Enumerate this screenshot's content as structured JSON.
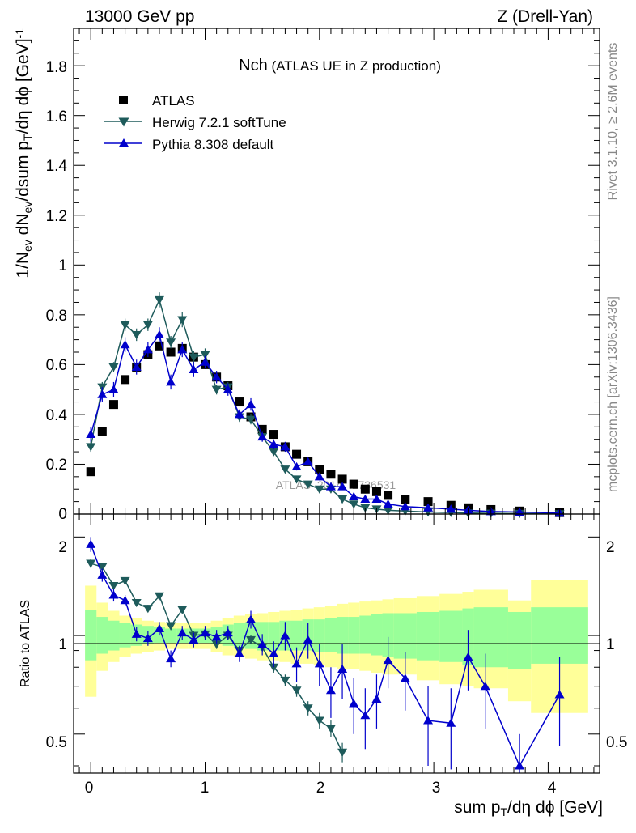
{
  "header": {
    "left": "13000 GeV pp",
    "right": "Z (Drell-Yan)"
  },
  "side_text": {
    "rivet": "Rivet 3.1.10, ≥ 2.6M events",
    "mcplots": "mcplots.cern.ch [arXiv:1306.3436]"
  },
  "watermark": "ATLAS_2014_I1736531",
  "plot_title": {
    "main": "Nch",
    "sub": "(ATLAS UE in Z production)"
  },
  "x_axis": {
    "label_parts": [
      "sum p",
      "T",
      "/dη dϕ [GeV]"
    ],
    "ticks": [
      "0",
      "1",
      "2",
      "3",
      "4"
    ]
  },
  "y_axis_main": {
    "label_parts": [
      "1/N",
      "ev",
      " dN",
      "ev",
      "/dsum p",
      "T",
      "/dη dϕ  [GeV]",
      "-1"
    ],
    "ticks": [
      "0",
      "0.2",
      "0.4",
      "0.6",
      "0.8",
      "1",
      "1.2",
      "1.4",
      "1.6",
      "1.8"
    ]
  },
  "y_axis_ratio": {
    "label": "Ratio to ATLAS",
    "ticks": [
      "0.5",
      "1",
      "2"
    ]
  },
  "colors": {
    "atlas": "#000000",
    "herwig": "#1e5b5b",
    "pythia": "#0000cc",
    "band_inner": "#99ff99",
    "band_outer": "#ffff99"
  },
  "chart_data": [
    {
      "type": "scatter",
      "panel": "main",
      "xlim": [
        -0.15,
        4.45
      ],
      "ylim": [
        0,
        1.95
      ],
      "series": [
        {
          "name": "ATLAS",
          "marker": "square",
          "x": [
            0,
            0.1,
            0.2,
            0.3,
            0.4,
            0.5,
            0.6,
            0.7,
            0.8,
            0.9,
            1.0,
            1.1,
            1.2,
            1.3,
            1.4,
            1.5,
            1.6,
            1.7,
            1.8,
            1.9,
            2.0,
            2.1,
            2.2,
            2.3,
            2.4,
            2.5,
            2.6,
            2.75,
            2.95,
            3.15,
            3.3,
            3.5,
            3.75,
            4.1
          ],
          "y": [
            0.17,
            0.33,
            0.44,
            0.54,
            0.59,
            0.64,
            0.675,
            0.65,
            0.665,
            0.63,
            0.6,
            0.55,
            0.515,
            0.45,
            0.39,
            0.34,
            0.32,
            0.27,
            0.24,
            0.21,
            0.18,
            0.16,
            0.14,
            0.12,
            0.1,
            0.09,
            0.075,
            0.06,
            0.05,
            0.035,
            0.025,
            0.018,
            0.012,
            0.006
          ],
          "err": []
        },
        {
          "name": "Herwig 7.2.1 softTune",
          "marker": "triangle-down",
          "x": [
            0,
            0.1,
            0.2,
            0.3,
            0.4,
            0.5,
            0.6,
            0.7,
            0.8,
            0.9,
            1.0,
            1.1,
            1.2,
            1.3,
            1.4,
            1.5,
            1.6,
            1.7,
            1.8,
            1.9,
            2.0,
            2.1,
            2.2,
            2.3,
            2.4,
            2.5,
            2.6,
            2.75,
            2.95,
            3.15,
            3.3,
            3.5,
            3.75,
            4.1
          ],
          "y": [
            0.27,
            0.51,
            0.59,
            0.76,
            0.72,
            0.76,
            0.86,
            0.69,
            0.78,
            0.63,
            0.64,
            0.5,
            0.51,
            0.39,
            0.38,
            0.31,
            0.25,
            0.18,
            0.14,
            0.12,
            0.1,
            0.1,
            0.06,
            0.04,
            0.025,
            0.02,
            0.015,
            0.012,
            0.008,
            0.006,
            0.004,
            0.003,
            0.002,
            0.001
          ],
          "err": [
            0.02,
            0.02,
            0.02,
            0.025,
            0.025,
            0.025,
            0.03,
            0.025,
            0.03,
            0.025,
            0.025,
            0.02,
            0.02,
            0.02,
            0.02,
            0.015,
            0.012,
            0.01,
            0.01,
            0.008,
            0.007,
            0.006,
            0.005,
            0.004,
            0.003,
            0.003,
            0.002,
            0.002,
            0.002,
            0.001,
            0.001,
            0.001,
            0.001,
            0.001
          ]
        },
        {
          "name": "Pythia 8.308 default",
          "marker": "triangle-up",
          "x": [
            0,
            0.1,
            0.2,
            0.3,
            0.4,
            0.5,
            0.6,
            0.7,
            0.8,
            0.9,
            1.0,
            1.1,
            1.2,
            1.3,
            1.4,
            1.5,
            1.6,
            1.7,
            1.8,
            1.9,
            2.0,
            2.1,
            2.2,
            2.3,
            2.4,
            2.5,
            2.6,
            2.75,
            2.95,
            3.15,
            3.3,
            3.5,
            3.75,
            4.1
          ],
          "y": [
            0.32,
            0.48,
            0.5,
            0.68,
            0.59,
            0.66,
            0.72,
            0.53,
            0.66,
            0.58,
            0.61,
            0.55,
            0.5,
            0.4,
            0.44,
            0.31,
            0.28,
            0.27,
            0.19,
            0.21,
            0.15,
            0.11,
            0.11,
            0.07,
            0.06,
            0.06,
            0.04,
            0.03,
            0.025,
            0.02,
            0.015,
            0.01,
            0.008,
            0.004
          ],
          "err": [
            0.03,
            0.03,
            0.03,
            0.03,
            0.03,
            0.03,
            0.03,
            0.03,
            0.03,
            0.03,
            0.025,
            0.025,
            0.025,
            0.02,
            0.025,
            0.02,
            0.02,
            0.02,
            0.015,
            0.015,
            0.015,
            0.012,
            0.012,
            0.01,
            0.01,
            0.01,
            0.008,
            0.007,
            0.006,
            0.005,
            0.004,
            0.003,
            0.003,
            0.002
          ]
        }
      ]
    },
    {
      "type": "scatter",
      "panel": "ratio",
      "log_y": true,
      "xlim": [
        -0.15,
        4.45
      ],
      "ylim": [
        0.38,
        2.35
      ],
      "reference_line": 1,
      "bands": {
        "edges": [
          -0.05,
          0.05,
          0.15,
          0.25,
          0.35,
          0.45,
          0.55,
          0.65,
          0.75,
          0.85,
          0.95,
          1.05,
          1.15,
          1.25,
          1.35,
          1.45,
          1.55,
          1.65,
          1.75,
          1.85,
          1.95,
          2.05,
          2.15,
          2.25,
          2.35,
          2.45,
          2.55,
          2.65,
          2.85,
          3.05,
          3.25,
          3.35,
          3.65,
          3.85,
          4.35
        ],
        "inner_lo": [
          0.84,
          0.88,
          0.9,
          0.92,
          0.93,
          0.94,
          0.95,
          0.95,
          0.95,
          0.95,
          0.95,
          0.94,
          0.93,
          0.92,
          0.91,
          0.9,
          0.9,
          0.9,
          0.9,
          0.9,
          0.89,
          0.89,
          0.88,
          0.88,
          0.88,
          0.87,
          0.86,
          0.85,
          0.84,
          0.83,
          0.81,
          0.8,
          0.79,
          0.82
        ],
        "inner_hi": [
          1.2,
          1.14,
          1.11,
          1.09,
          1.08,
          1.07,
          1.06,
          1.05,
          1.05,
          1.05,
          1.05,
          1.06,
          1.08,
          1.09,
          1.1,
          1.1,
          1.1,
          1.11,
          1.11,
          1.12,
          1.12,
          1.13,
          1.14,
          1.14,
          1.15,
          1.16,
          1.17,
          1.17,
          1.18,
          1.19,
          1.21,
          1.22,
          1.18,
          1.22
        ],
        "outer_lo": [
          0.65,
          0.78,
          0.83,
          0.86,
          0.88,
          0.89,
          0.9,
          0.91,
          0.91,
          0.91,
          0.91,
          0.89,
          0.87,
          0.86,
          0.85,
          0.84,
          0.84,
          0.83,
          0.82,
          0.82,
          0.81,
          0.8,
          0.79,
          0.79,
          0.78,
          0.77,
          0.76,
          0.76,
          0.73,
          0.71,
          0.7,
          0.69,
          0.63,
          0.58
        ],
        "outer_hi": [
          1.42,
          1.26,
          1.19,
          1.15,
          1.13,
          1.11,
          1.1,
          1.09,
          1.09,
          1.09,
          1.09,
          1.11,
          1.13,
          1.15,
          1.16,
          1.17,
          1.18,
          1.19,
          1.2,
          1.21,
          1.22,
          1.23,
          1.25,
          1.26,
          1.27,
          1.28,
          1.29,
          1.3,
          1.32,
          1.34,
          1.36,
          1.38,
          1.28,
          1.48
        ]
      },
      "series": [
        {
          "name": "Herwig 7.2.1 softTune",
          "marker": "triangle-down",
          "x": [
            0,
            0.1,
            0.2,
            0.3,
            0.4,
            0.5,
            0.6,
            0.7,
            0.8,
            0.9,
            1.0,
            1.1,
            1.2,
            1.3,
            1.4,
            1.5,
            1.6,
            1.7,
            1.8,
            1.9,
            2.0,
            2.1,
            2.2
          ],
          "y": [
            1.66,
            1.62,
            1.42,
            1.47,
            1.26,
            1.21,
            1.32,
            1.07,
            1.2,
            1.0,
            1.01,
            0.94,
            1.0,
            0.9,
            0.97,
            0.92,
            0.8,
            0.73,
            0.68,
            0.6,
            0.55,
            0.52,
            0.44
          ],
          "err": [
            0.05,
            0.04,
            0.03,
            0.03,
            0.03,
            0.03,
            0.03,
            0.03,
            0.03,
            0.03,
            0.03,
            0.03,
            0.03,
            0.03,
            0.03,
            0.03,
            0.03,
            0.03,
            0.03,
            0.03,
            0.03,
            0.03,
            0.03
          ]
        },
        {
          "name": "Pythia 8.308 default",
          "marker": "triangle-up",
          "x": [
            0,
            0.1,
            0.2,
            0.3,
            0.4,
            0.5,
            0.6,
            0.7,
            0.8,
            0.9,
            1.0,
            1.1,
            1.2,
            1.3,
            1.4,
            1.5,
            1.6,
            1.7,
            1.8,
            1.9,
            2.0,
            2.1,
            2.2,
            2.3,
            2.4,
            2.5,
            2.6,
            2.75,
            2.95,
            3.15,
            3.3,
            3.45,
            3.75,
            4.1
          ],
          "y": [
            1.9,
            1.53,
            1.33,
            1.28,
            1.01,
            0.98,
            1.05,
            0.85,
            1.02,
            0.97,
            1.02,
            0.99,
            1.02,
            0.88,
            1.12,
            0.94,
            0.88,
            1.0,
            0.82,
            0.97,
            0.82,
            0.68,
            0.79,
            0.62,
            0.57,
            0.64,
            0.84,
            0.74,
            0.55,
            0.54,
            0.86,
            0.7,
            0.4,
            0.66
          ],
          "err": [
            0.1,
            0.07,
            0.06,
            0.05,
            0.05,
            0.05,
            0.05,
            0.05,
            0.05,
            0.05,
            0.05,
            0.05,
            0.05,
            0.05,
            0.07,
            0.07,
            0.08,
            0.1,
            0.1,
            0.12,
            0.12,
            0.12,
            0.15,
            0.12,
            0.12,
            0.12,
            0.15,
            0.15,
            0.15,
            0.15,
            0.18,
            0.18,
            0.1,
            0.2
          ]
        }
      ]
    }
  ]
}
